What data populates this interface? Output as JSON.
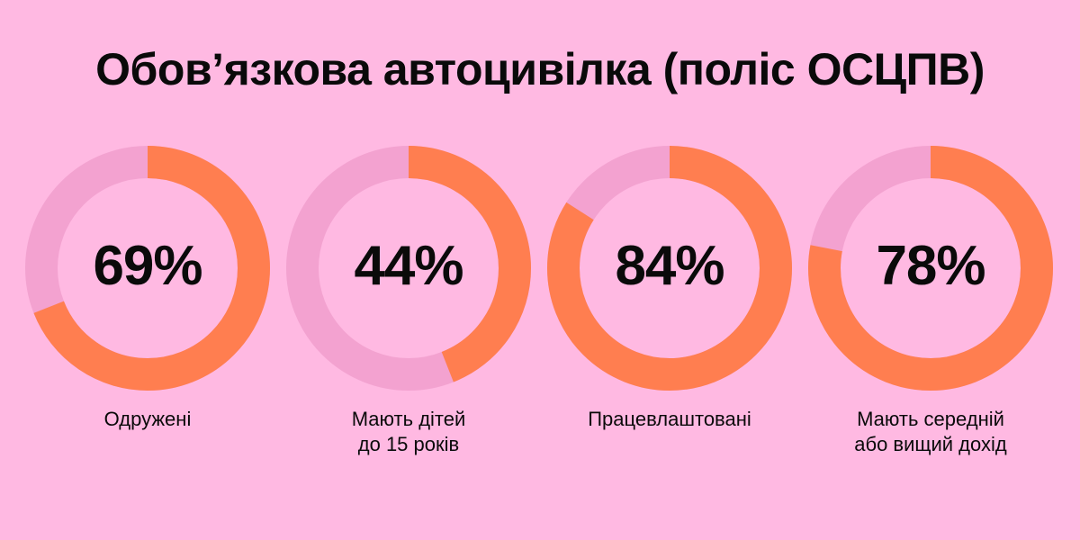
{
  "title": "Обов’язкова автоцивілка (поліс ОСЦПВ)",
  "colors": {
    "background": "#FFB9E2",
    "filled": "#FF7E50",
    "remainder": "#F3A2D0"
  },
  "chart_data": {
    "type": "pie",
    "title": "Обов’язкова автоцивілка (поліс ОСЦПВ)",
    "unit": "%",
    "items": [
      {
        "value": 69,
        "display": "69%",
        "label": [
          "Одружені"
        ]
      },
      {
        "value": 44,
        "display": "44%",
        "label": [
          "Мають дітей",
          "до 15 років"
        ]
      },
      {
        "value": 84,
        "display": "84%",
        "label": [
          "Працевлаштовані"
        ]
      },
      {
        "value": 78,
        "display": "78%",
        "label": [
          "Мають середній",
          "або вищий дохід"
        ]
      }
    ]
  }
}
